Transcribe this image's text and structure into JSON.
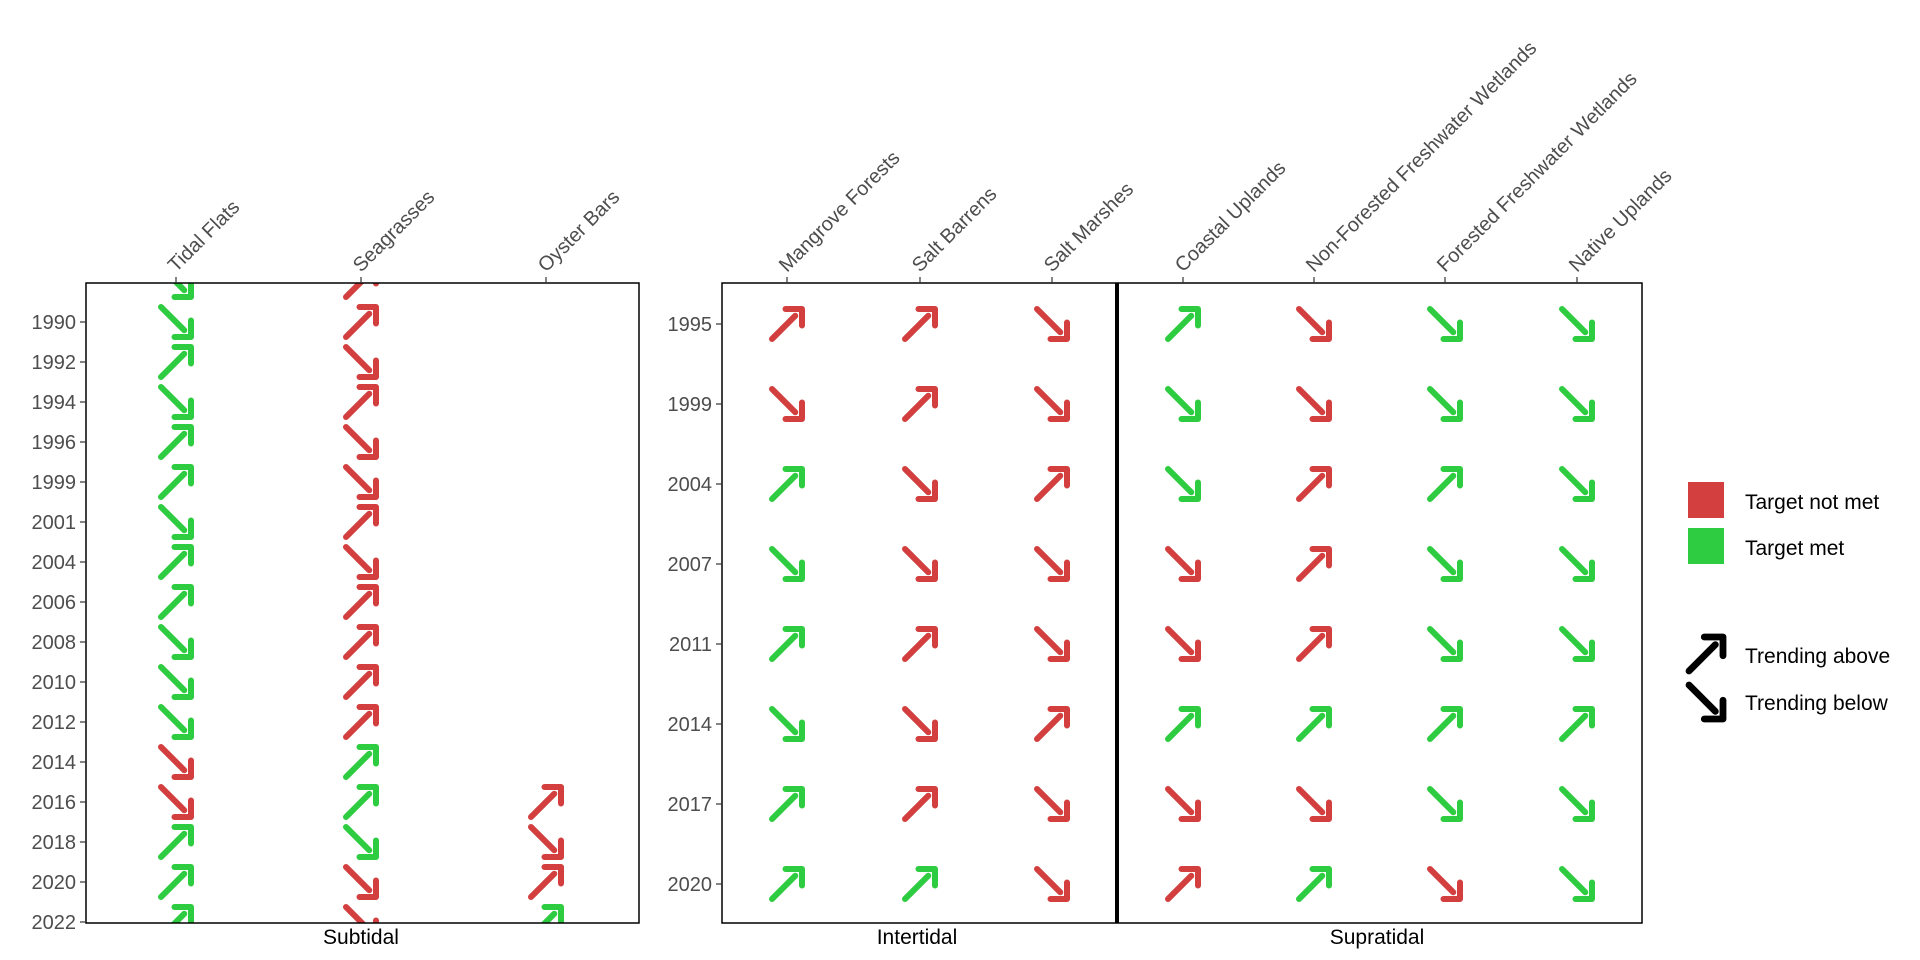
{
  "chart_data": [
    {
      "type": "scatter",
      "facet": "Subtidal",
      "categories": [
        "Tidal Flats",
        "Seagrasses",
        "Oyster Bars"
      ],
      "years": [
        1988,
        1990,
        1992,
        1994,
        1996,
        1999,
        2001,
        2004,
        2006,
        2008,
        2010,
        2012,
        2014,
        2016,
        2018,
        2020,
        2022
      ],
      "y_tick_labels": [
        "1990",
        "1992",
        "1994",
        "1996",
        "1999",
        "2001",
        "2004",
        "2006",
        "2008",
        "2010",
        "2012",
        "2014",
        "2016",
        "2018",
        "2020",
        "2022"
      ],
      "points": [
        {
          "category": "Tidal Flats",
          "year": 1988,
          "met": true,
          "trend": "below"
        },
        {
          "category": "Tidal Flats",
          "year": 1990,
          "met": true,
          "trend": "below"
        },
        {
          "category": "Tidal Flats",
          "year": 1992,
          "met": true,
          "trend": "above"
        },
        {
          "category": "Tidal Flats",
          "year": 1994,
          "met": true,
          "trend": "below"
        },
        {
          "category": "Tidal Flats",
          "year": 1996,
          "met": true,
          "trend": "above"
        },
        {
          "category": "Tidal Flats",
          "year": 1999,
          "met": true,
          "trend": "above"
        },
        {
          "category": "Tidal Flats",
          "year": 2001,
          "met": true,
          "trend": "below"
        },
        {
          "category": "Tidal Flats",
          "year": 2004,
          "met": true,
          "trend": "above"
        },
        {
          "category": "Tidal Flats",
          "year": 2006,
          "met": true,
          "trend": "above"
        },
        {
          "category": "Tidal Flats",
          "year": 2008,
          "met": true,
          "trend": "below"
        },
        {
          "category": "Tidal Flats",
          "year": 2010,
          "met": true,
          "trend": "below"
        },
        {
          "category": "Tidal Flats",
          "year": 2012,
          "met": true,
          "trend": "below"
        },
        {
          "category": "Tidal Flats",
          "year": 2014,
          "met": false,
          "trend": "below"
        },
        {
          "category": "Tidal Flats",
          "year": 2016,
          "met": false,
          "trend": "below"
        },
        {
          "category": "Tidal Flats",
          "year": 2018,
          "met": true,
          "trend": "above"
        },
        {
          "category": "Tidal Flats",
          "year": 2020,
          "met": true,
          "trend": "above"
        },
        {
          "category": "Tidal Flats",
          "year": 2022,
          "met": true,
          "trend": "above"
        },
        {
          "category": "Seagrasses",
          "year": 1988,
          "met": false,
          "trend": "above"
        },
        {
          "category": "Seagrasses",
          "year": 1990,
          "met": false,
          "trend": "above"
        },
        {
          "category": "Seagrasses",
          "year": 1992,
          "met": false,
          "trend": "below"
        },
        {
          "category": "Seagrasses",
          "year": 1994,
          "met": false,
          "trend": "above"
        },
        {
          "category": "Seagrasses",
          "year": 1996,
          "met": false,
          "trend": "below"
        },
        {
          "category": "Seagrasses",
          "year": 1999,
          "met": false,
          "trend": "below"
        },
        {
          "category": "Seagrasses",
          "year": 2001,
          "met": false,
          "trend": "above"
        },
        {
          "category": "Seagrasses",
          "year": 2004,
          "met": false,
          "trend": "below"
        },
        {
          "category": "Seagrasses",
          "year": 2006,
          "met": false,
          "trend": "above"
        },
        {
          "category": "Seagrasses",
          "year": 2008,
          "met": false,
          "trend": "above"
        },
        {
          "category": "Seagrasses",
          "year": 2010,
          "met": false,
          "trend": "above"
        },
        {
          "category": "Seagrasses",
          "year": 2012,
          "met": false,
          "trend": "above"
        },
        {
          "category": "Seagrasses",
          "year": 2014,
          "met": true,
          "trend": "above"
        },
        {
          "category": "Seagrasses",
          "year": 2016,
          "met": true,
          "trend": "above"
        },
        {
          "category": "Seagrasses",
          "year": 2018,
          "met": true,
          "trend": "below"
        },
        {
          "category": "Seagrasses",
          "year": 2020,
          "met": false,
          "trend": "below"
        },
        {
          "category": "Seagrasses",
          "year": 2022,
          "met": false,
          "trend": "below"
        },
        {
          "category": "Oyster Bars",
          "year": 2016,
          "met": false,
          "trend": "above"
        },
        {
          "category": "Oyster Bars",
          "year": 2018,
          "met": false,
          "trend": "below"
        },
        {
          "category": "Oyster Bars",
          "year": 2020,
          "met": false,
          "trend": "above"
        },
        {
          "category": "Oyster Bars",
          "year": 2022,
          "met": true,
          "trend": "above"
        }
      ]
    },
    {
      "type": "scatter",
      "facets": [
        "Intertidal",
        "Supratidal"
      ],
      "categories": [
        "Mangrove Forests",
        "Salt Barrens",
        "Salt Marshes",
        "Coastal Uplands",
        "Non-Forested Freshwater Wetlands",
        "Forested Freshwater Wetlands",
        "Native Uplands"
      ],
      "years": [
        1995,
        1999,
        2004,
        2007,
        2011,
        2014,
        2017,
        2020
      ],
      "y_tick_labels": [
        "1995",
        "1999",
        "2004",
        "2007",
        "2011",
        "2014",
        "2017",
        "2020"
      ],
      "grid": [
        {
          "category": "Mangrove Forests",
          "met": [
            false,
            false,
            true,
            true,
            true,
            true,
            true,
            true
          ],
          "trend": [
            "above",
            "below",
            "above",
            "below",
            "above",
            "below",
            "above",
            "above"
          ]
        },
        {
          "category": "Salt Barrens",
          "met": [
            false,
            false,
            false,
            false,
            false,
            false,
            false,
            true
          ],
          "trend": [
            "above",
            "above",
            "below",
            "below",
            "above",
            "below",
            "above",
            "above"
          ]
        },
        {
          "category": "Salt Marshes",
          "met": [
            false,
            false,
            false,
            false,
            false,
            false,
            false,
            false
          ],
          "trend": [
            "below",
            "below",
            "above",
            "below",
            "below",
            "above",
            "below",
            "below"
          ]
        },
        {
          "category": "Coastal Uplands",
          "met": [
            true,
            true,
            true,
            false,
            false,
            true,
            false,
            false
          ],
          "trend": [
            "above",
            "below",
            "below",
            "below",
            "below",
            "above",
            "below",
            "above"
          ]
        },
        {
          "category": "Non-Forested Freshwater Wetlands",
          "met": [
            false,
            false,
            false,
            false,
            false,
            true,
            false,
            true
          ],
          "trend": [
            "below",
            "below",
            "above",
            "above",
            "above",
            "above",
            "below",
            "above"
          ]
        },
        {
          "category": "Forested Freshwater Wetlands",
          "met": [
            true,
            true,
            true,
            true,
            true,
            true,
            true,
            false
          ],
          "trend": [
            "below",
            "below",
            "above",
            "below",
            "below",
            "above",
            "below",
            "below"
          ]
        },
        {
          "category": "Native Uplands",
          "met": [
            true,
            true,
            true,
            true,
            true,
            true,
            true,
            true
          ],
          "trend": [
            "below",
            "below",
            "below",
            "below",
            "below",
            "above",
            "below",
            "below"
          ]
        }
      ]
    }
  ],
  "facets": {
    "subtidal": "Subtidal",
    "intertidal": "Intertidal",
    "supratidal": "Supratidal"
  },
  "legend": {
    "color": [
      {
        "label": "Target not met",
        "color": "#d33f3f"
      },
      {
        "label": "Target met",
        "color": "#2ecc40"
      }
    ],
    "shape": [
      {
        "label": "Trending above",
        "icon": "arrow-up-right-icon"
      },
      {
        "label": "Trending below",
        "icon": "arrow-down-right-icon"
      }
    ]
  },
  "colors": {
    "not_met": "#d33f3f",
    "met": "#2ecc40",
    "arrow_legend": "#000000"
  }
}
